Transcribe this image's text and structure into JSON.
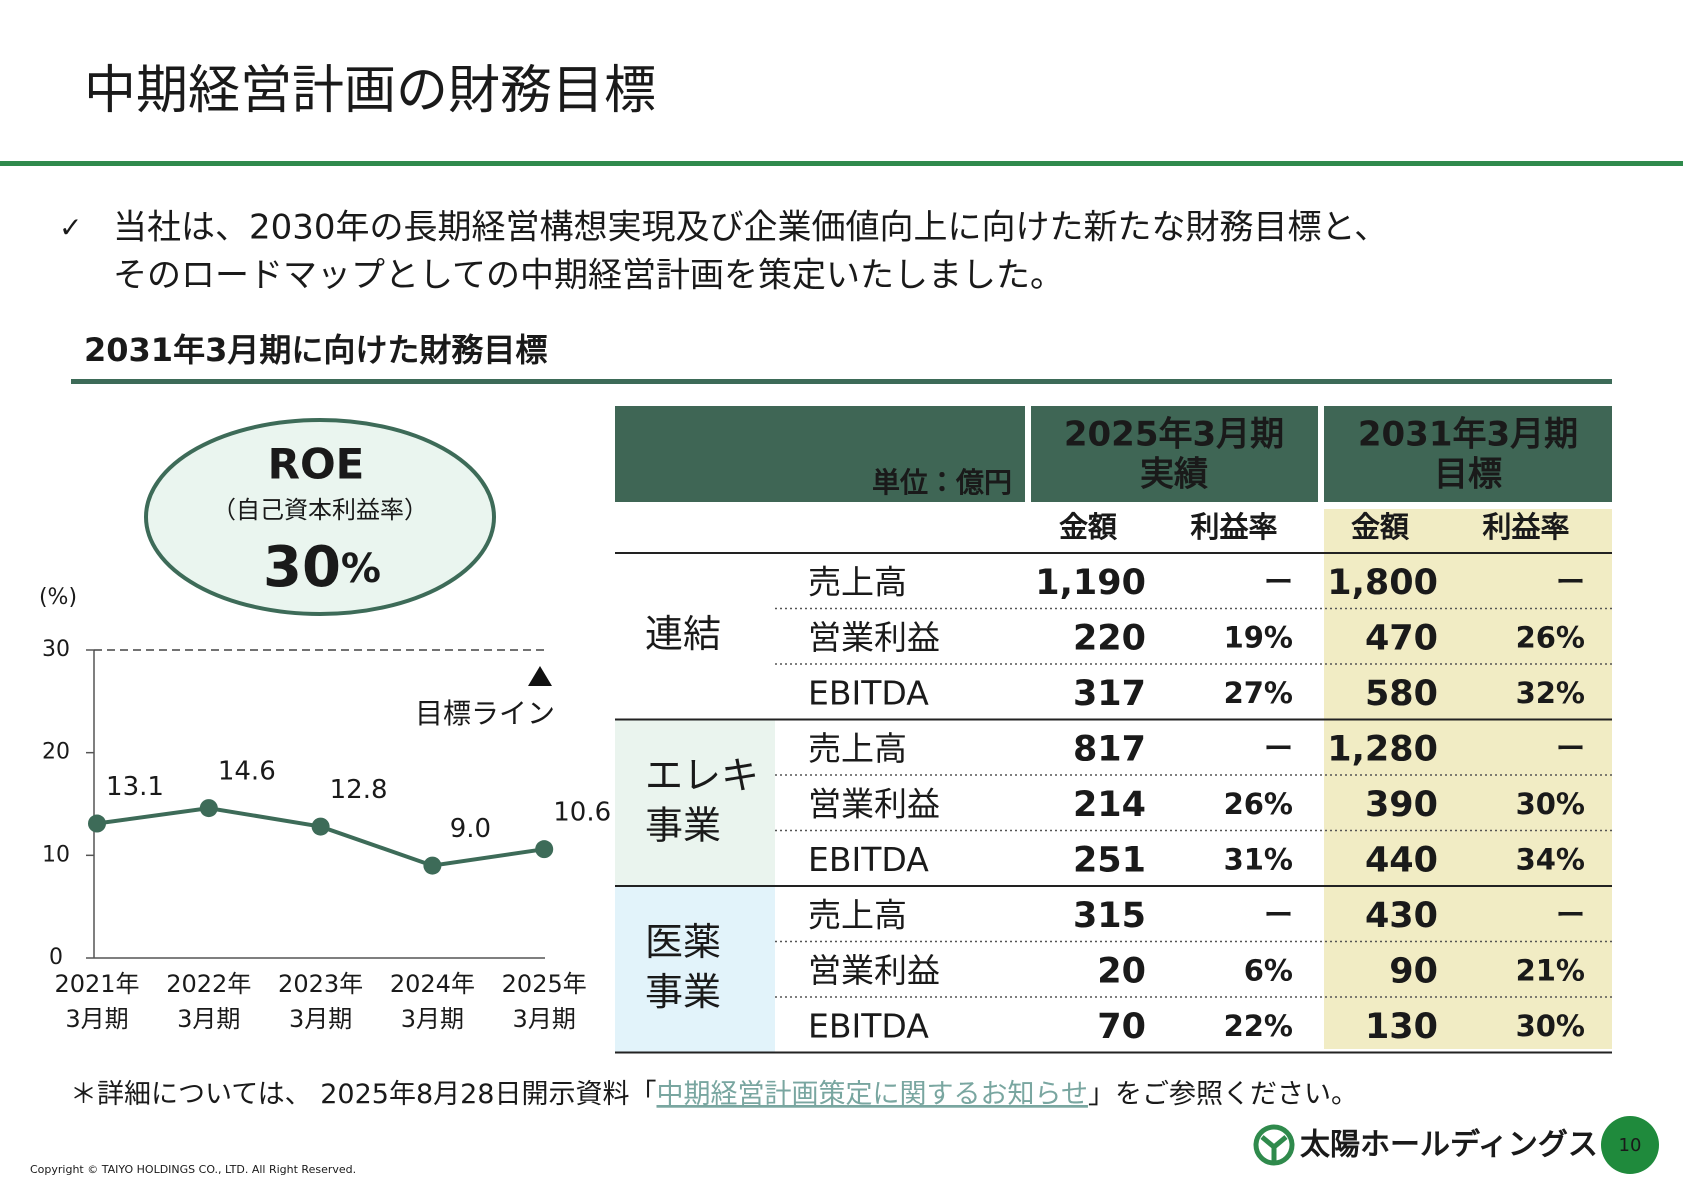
{
  "header": {
    "title": "中期経営計画の財務目標"
  },
  "intro": {
    "bullet": "✓",
    "lines": [
      "当社は、2030年の長期経営構想実現及び企業価値向上に向けた新たな財務目標と、",
      "そのロードマップとしての中期経営計画を策定いたしました。"
    ]
  },
  "section_title": "2031年3月期に向けた財務目標",
  "roe": {
    "title": "ROE",
    "subtitle": "（自己資本利益率）",
    "value": "30",
    "unit": "%"
  },
  "chart_data": {
    "type": "line",
    "y_label": "(%)",
    "categories": [
      [
        "2021年",
        "3月期"
      ],
      [
        "2022年",
        "3月期"
      ],
      [
        "2023年",
        "3月期"
      ],
      [
        "2024年",
        "3月期"
      ],
      [
        "2025年",
        "3月期"
      ]
    ],
    "values": [
      13.1,
      14.6,
      12.8,
      9.0,
      10.6
    ],
    "value_labels": [
      "13.1",
      "14.6",
      "12.8",
      "9.0",
      "10.6"
    ],
    "color": "#3d6b58",
    "ylim": [
      0,
      30
    ],
    "yticks": [
      0,
      10,
      20,
      30
    ],
    "target": {
      "value": 30,
      "label": "目標ライン"
    }
  },
  "table": {
    "unit": "単位：億円",
    "periods": [
      [
        "2025年3月期",
        "実績"
      ],
      [
        "2031年3月期",
        "目標"
      ]
    ],
    "subheaders": [
      "金額",
      "利益率",
      "金額",
      "利益率"
    ],
    "groups": [
      {
        "label": [
          "連結"
        ],
        "rows": [
          [
            "売上高",
            "1,190",
            "ー",
            "1,800",
            "ー"
          ],
          [
            "営業利益",
            "220",
            "19%",
            "470",
            "26%"
          ],
          [
            "EBITDA",
            "317",
            "27%",
            "580",
            "32%"
          ]
        ]
      },
      {
        "label": [
          "エレキ",
          "事業"
        ],
        "rows": [
          [
            "売上高",
            "817",
            "ー",
            "1,280",
            "ー"
          ],
          [
            "営業利益",
            "214",
            "26%",
            "390",
            "30%"
          ],
          [
            "EBITDA",
            "251",
            "31%",
            "440",
            "34%"
          ]
        ]
      },
      {
        "label": [
          "医薬",
          "事業"
        ],
        "rows": [
          [
            "売上高",
            "315",
            "ー",
            "430",
            "ー"
          ],
          [
            "営業利益",
            "20",
            "6%",
            "90",
            "21%"
          ],
          [
            "EBITDA",
            "70",
            "22%",
            "130",
            "30%"
          ]
        ]
      }
    ]
  },
  "footnote": {
    "prefix": "＊詳細については、 2025年8月28日開示資料「",
    "link": "中期経営計画策定に関するお知らせ",
    "suffix": "」をご参照ください。"
  },
  "footer": {
    "logo": "太陽ホールディングス",
    "page": "10",
    "copyright": "Copyright © TAIYO HOLDINGS CO., LTD.  All Right Reserved."
  }
}
